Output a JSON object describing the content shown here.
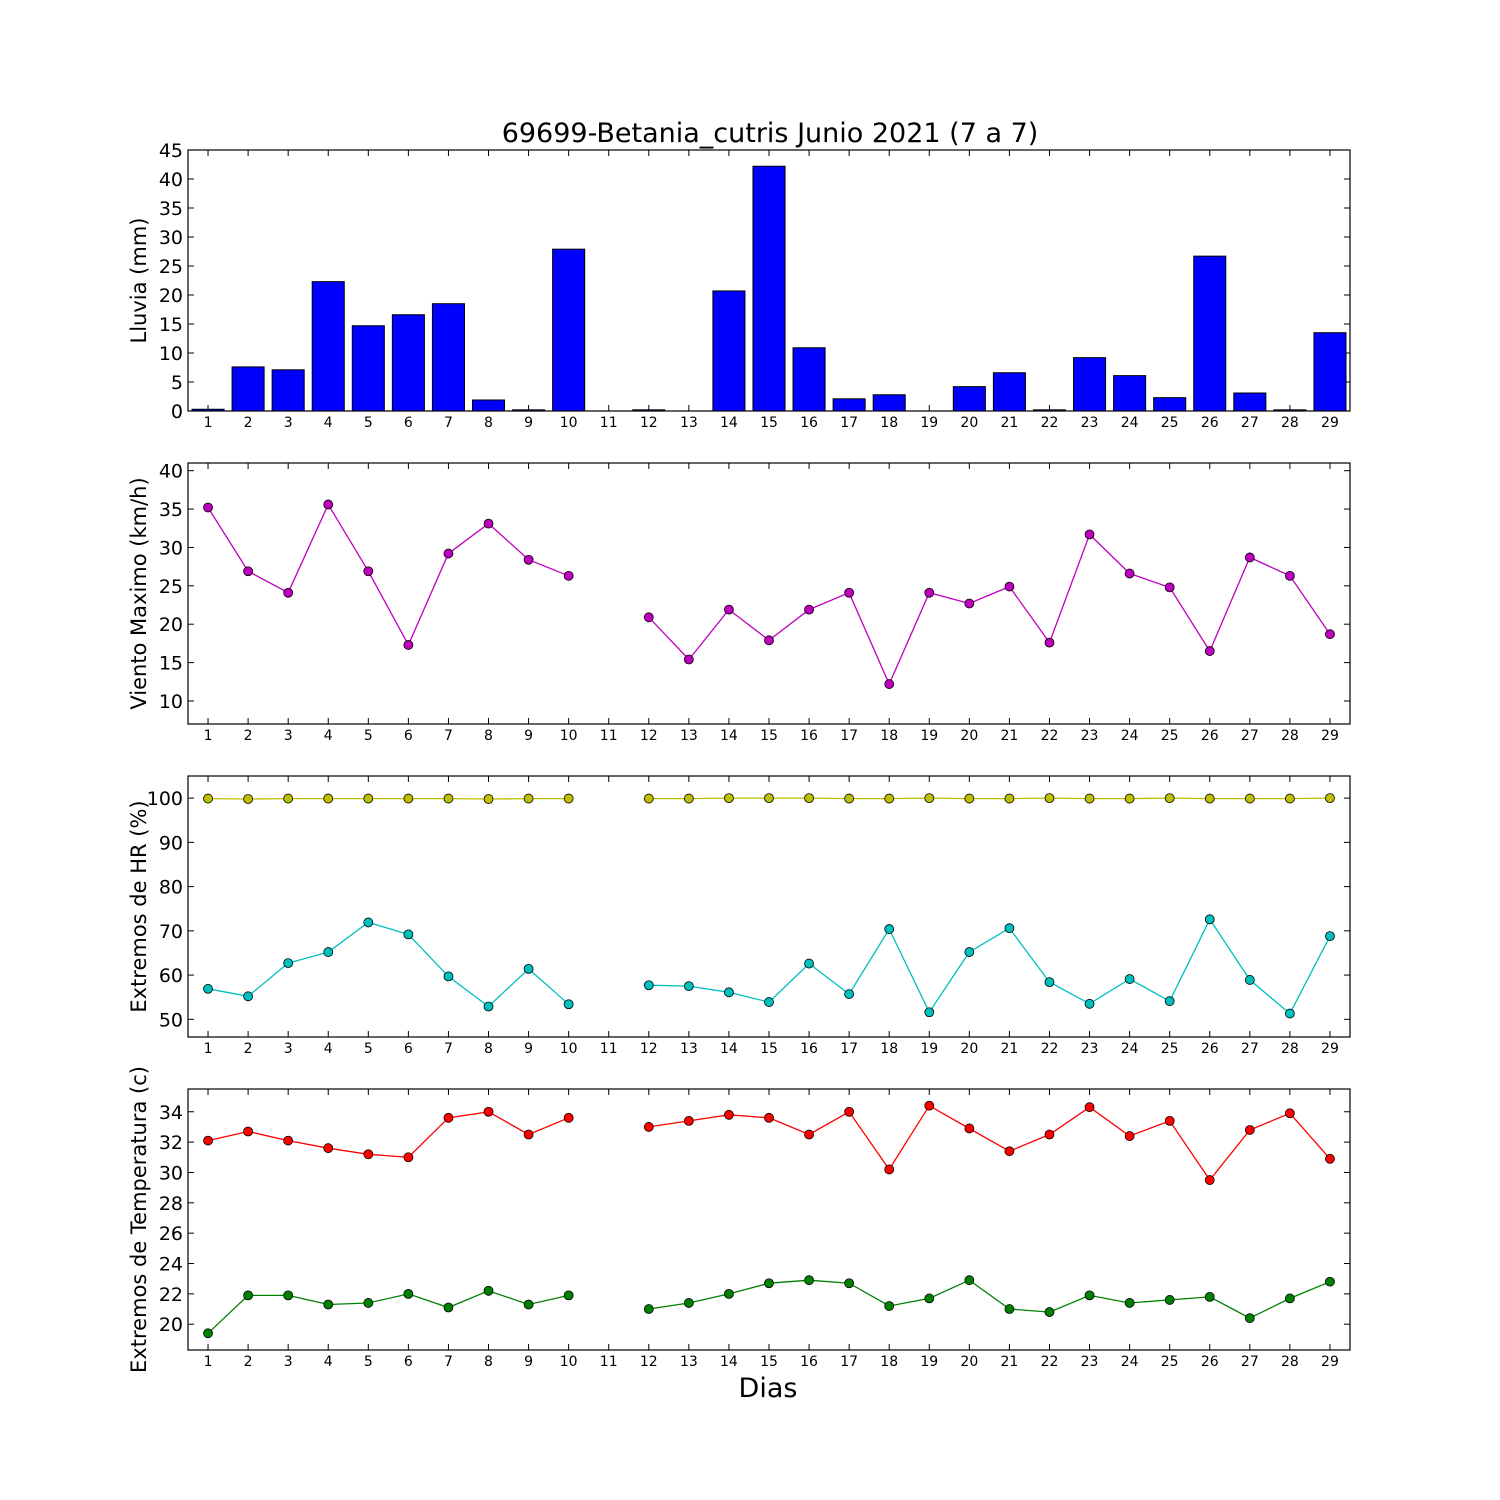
{
  "title": "69699-Betania_cutris Junio 2021  (7 a 7)",
  "xlabel": "Dias",
  "chart_data": [
    {
      "type": "bar",
      "ylabel": "Lluvia (mm)",
      "ylim": [
        0,
        45
      ],
      "yticks": [
        "0",
        "5",
        "10",
        "15",
        "20",
        "25",
        "30",
        "35",
        "40",
        "45"
      ],
      "xlim": [
        1,
        29
      ],
      "xticks": [
        "1",
        "2",
        "3",
        "4",
        "5",
        "6",
        "7",
        "8",
        "9",
        "10",
        "11",
        "12",
        "13",
        "14",
        "15",
        "16",
        "17",
        "18",
        "19",
        "20",
        "21",
        "22",
        "23",
        "24",
        "25",
        "26",
        "27",
        "28",
        "29"
      ],
      "series": [
        {
          "color": "#0000ff",
          "x": [
            1,
            2,
            3,
            4,
            5,
            6,
            7,
            8,
            9,
            10,
            11,
            12,
            13,
            14,
            15,
            16,
            17,
            18,
            19,
            20,
            21,
            22,
            23,
            24,
            25,
            26,
            27,
            28,
            29
          ],
          "values": [
            0.3,
            7.6,
            7.1,
            22.3,
            14.7,
            16.6,
            18.5,
            1.9,
            0.2,
            27.9,
            null,
            0.2,
            null,
            20.7,
            42.2,
            10.9,
            2.1,
            2.8,
            null,
            4.2,
            6.6,
            0.2,
            9.2,
            6.1,
            2.3,
            26.7,
            3.1,
            0.2,
            13.5
          ]
        }
      ]
    },
    {
      "type": "line",
      "ylabel": "Viento Maximo (km/h)",
      "ylim": [
        7,
        41
      ],
      "yticks": [
        "10",
        "15",
        "20",
        "25",
        "30",
        "35",
        "40"
      ],
      "xlim": [
        1,
        29
      ],
      "xticks": [
        "1",
        "2",
        "3",
        "4",
        "5",
        "6",
        "7",
        "8",
        "9",
        "10",
        "11",
        "12",
        "13",
        "14",
        "15",
        "16",
        "17",
        "18",
        "19",
        "20",
        "21",
        "22",
        "23",
        "24",
        "25",
        "26",
        "27",
        "28",
        "29"
      ],
      "series": [
        {
          "color": "#bf00bf",
          "x": [
            1,
            2,
            3,
            4,
            5,
            6,
            7,
            8,
            9,
            10,
            11,
            12,
            13,
            14,
            15,
            16,
            17,
            18,
            19,
            20,
            21,
            22,
            23,
            24,
            25,
            26,
            27,
            28,
            29
          ],
          "values": [
            35.2,
            26.9,
            24.1,
            35.6,
            26.9,
            17.3,
            29.2,
            33.1,
            28.4,
            26.3,
            null,
            20.9,
            15.4,
            21.9,
            17.9,
            21.9,
            24.1,
            12.2,
            24.1,
            22.7,
            24.9,
            17.6,
            31.7,
            26.6,
            24.8,
            16.5,
            28.7,
            26.3,
            18.7
          ]
        }
      ]
    },
    {
      "type": "line",
      "ylabel": "Extremos de HR (%)",
      "ylim": [
        46,
        105
      ],
      "yticks": [
        "50",
        "60",
        "70",
        "80",
        "90",
        "100"
      ],
      "xlim": [
        1,
        29
      ],
      "xticks": [
        "1",
        "2",
        "3",
        "4",
        "5",
        "6",
        "7",
        "8",
        "9",
        "10",
        "11",
        "12",
        "13",
        "14",
        "15",
        "16",
        "17",
        "18",
        "19",
        "20",
        "21",
        "22",
        "23",
        "24",
        "25",
        "26",
        "27",
        "28",
        "29"
      ],
      "series": [
        {
          "color": "#bfbf00",
          "x": [
            1,
            2,
            3,
            4,
            5,
            6,
            7,
            8,
            9,
            10,
            11,
            12,
            13,
            14,
            15,
            16,
            17,
            18,
            19,
            20,
            21,
            22,
            23,
            24,
            25,
            26,
            27,
            28,
            29
          ],
          "values": [
            99.9,
            99.8,
            99.9,
            99.9,
            99.9,
            99.9,
            99.9,
            99.8,
            99.9,
            99.9,
            null,
            99.9,
            99.9,
            100,
            100,
            100,
            99.9,
            99.9,
            100,
            99.9,
            99.9,
            100,
            99.9,
            99.9,
            100,
            99.9,
            99.9,
            99.9,
            100
          ]
        },
        {
          "color": "#00bfbf",
          "x": [
            1,
            2,
            3,
            4,
            5,
            6,
            7,
            8,
            9,
            10,
            11,
            12,
            13,
            14,
            15,
            16,
            17,
            18,
            19,
            20,
            21,
            22,
            23,
            24,
            25,
            26,
            27,
            28,
            29
          ],
          "values": [
            56.9,
            55.2,
            62.7,
            65.2,
            71.9,
            69.2,
            59.7,
            52.9,
            61.4,
            53.4,
            null,
            57.7,
            57.5,
            56.1,
            53.9,
            62.6,
            55.7,
            70.4,
            51.6,
            65.2,
            70.6,
            58.4,
            53.5,
            59.1,
            54.1,
            72.6,
            58.9,
            51.3,
            68.8
          ]
        }
      ]
    },
    {
      "type": "line",
      "ylabel": "Extremos de Temperatura (c)",
      "ylim": [
        18.3,
        35.5
      ],
      "yticks": [
        "20",
        "22",
        "24",
        "26",
        "28",
        "30",
        "32",
        "34"
      ],
      "xlim": [
        1,
        29
      ],
      "xticks": [
        "1",
        "2",
        "3",
        "4",
        "5",
        "6",
        "7",
        "8",
        "9",
        "10",
        "11",
        "12",
        "13",
        "14",
        "15",
        "16",
        "17",
        "18",
        "19",
        "20",
        "21",
        "22",
        "23",
        "24",
        "25",
        "26",
        "27",
        "28",
        "29"
      ],
      "series": [
        {
          "color": "#ff0000",
          "x": [
            1,
            2,
            3,
            4,
            5,
            6,
            7,
            8,
            9,
            10,
            11,
            12,
            13,
            14,
            15,
            16,
            17,
            18,
            19,
            20,
            21,
            22,
            23,
            24,
            25,
            26,
            27,
            28,
            29
          ],
          "values": [
            32.1,
            32.7,
            32.1,
            31.6,
            31.2,
            31.0,
            33.6,
            34.0,
            32.5,
            33.6,
            null,
            33.0,
            33.4,
            33.8,
            33.6,
            32.5,
            34.0,
            30.2,
            34.4,
            32.9,
            31.4,
            32.5,
            34.3,
            32.4,
            33.4,
            29.5,
            32.8,
            33.9,
            30.9
          ]
        },
        {
          "color": "#008000",
          "x": [
            1,
            2,
            3,
            4,
            5,
            6,
            7,
            8,
            9,
            10,
            11,
            12,
            13,
            14,
            15,
            16,
            17,
            18,
            19,
            20,
            21,
            22,
            23,
            24,
            25,
            26,
            27,
            28,
            29
          ],
          "values": [
            19.4,
            21.9,
            21.9,
            21.3,
            21.4,
            22.0,
            21.1,
            22.2,
            21.3,
            21.9,
            null,
            21.0,
            21.4,
            22.0,
            22.7,
            22.9,
            22.7,
            21.2,
            21.7,
            22.9,
            21.0,
            20.8,
            21.9,
            21.4,
            21.6,
            21.8,
            20.4,
            21.7,
            22.8
          ]
        }
      ]
    }
  ]
}
